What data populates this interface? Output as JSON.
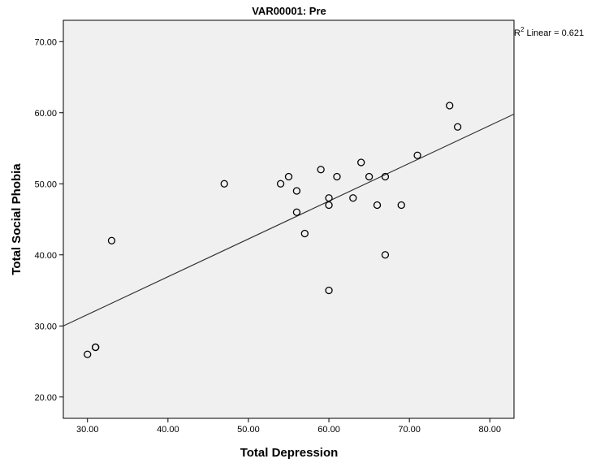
{
  "chart_data": {
    "type": "scatter",
    "title": "VAR00001: Pre",
    "xlabel": "Total Depression",
    "ylabel": "Total Social Phobia",
    "xlim": [
      27,
      83
    ],
    "ylim": [
      17,
      73
    ],
    "x_ticks": [
      "30.00",
      "40.00",
      "50.00",
      "60.00",
      "70.00",
      "80.00"
    ],
    "y_ticks": [
      "20.00",
      "30.00",
      "40.00",
      "50.00",
      "60.00",
      "70.00"
    ],
    "points": [
      {
        "x": 30,
        "y": 26
      },
      {
        "x": 31,
        "y": 27
      },
      {
        "x": 31,
        "y": 27
      },
      {
        "x": 33,
        "y": 42
      },
      {
        "x": 47,
        "y": 50
      },
      {
        "x": 54,
        "y": 50
      },
      {
        "x": 55,
        "y": 51
      },
      {
        "x": 56,
        "y": 49
      },
      {
        "x": 56,
        "y": 46
      },
      {
        "x": 57,
        "y": 43
      },
      {
        "x": 59,
        "y": 52
      },
      {
        "x": 60,
        "y": 48
      },
      {
        "x": 60,
        "y": 47
      },
      {
        "x": 60,
        "y": 35
      },
      {
        "x": 61,
        "y": 51
      },
      {
        "x": 63,
        "y": 48
      },
      {
        "x": 64,
        "y": 53
      },
      {
        "x": 65,
        "y": 51
      },
      {
        "x": 66,
        "y": 47
      },
      {
        "x": 67,
        "y": 51
      },
      {
        "x": 67,
        "y": 40
      },
      {
        "x": 69,
        "y": 47
      },
      {
        "x": 71,
        "y": 54
      },
      {
        "x": 75,
        "y": 61
      },
      {
        "x": 76,
        "y": 58
      }
    ],
    "fit_line": {
      "type": "linear",
      "x": [
        27,
        83
      ],
      "y": [
        30.0,
        59.8
      ]
    },
    "r2_label": {
      "prefix": "R",
      "sup": "2",
      "suffix": " Linear = 0.621"
    },
    "grid": false,
    "colors": {
      "plot_background": "#f0f0f0",
      "point_edge": "#000000",
      "fit_line": "#333333"
    }
  }
}
